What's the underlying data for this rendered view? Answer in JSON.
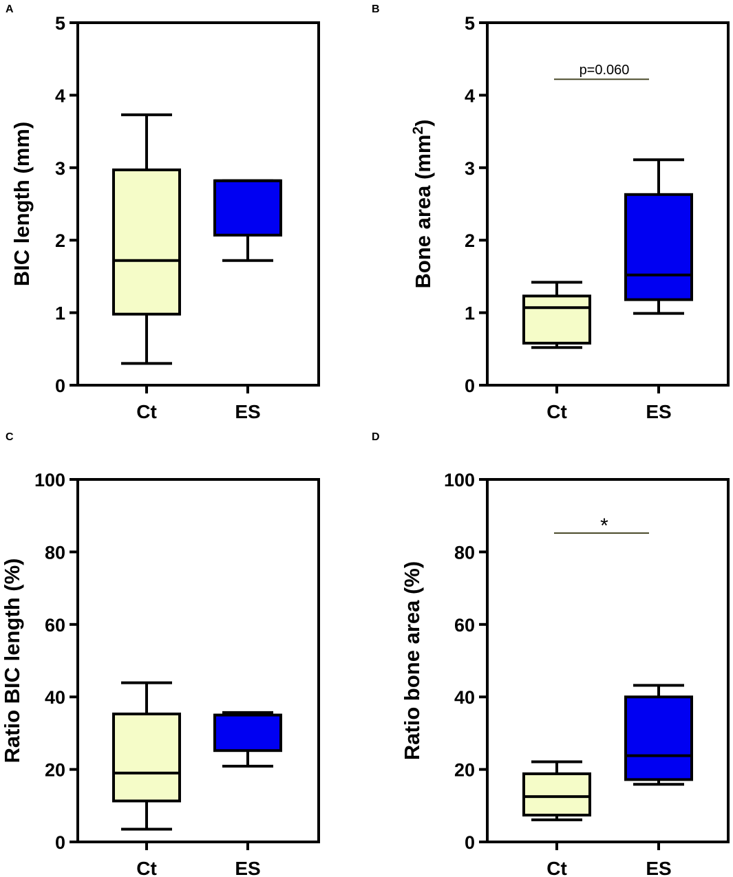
{
  "chart_data": [
    {
      "panel": "A",
      "type": "box",
      "categories": [
        "Ct",
        "ES"
      ],
      "ylabel": "BIC length (mm)",
      "ylabel_sup": "",
      "ylabel_tail": "",
      "ylim": [
        0,
        5
      ],
      "yticks": [
        "0",
        "1",
        "2",
        "3",
        "4",
        "5"
      ],
      "boxes": [
        {
          "name": "Ct",
          "min": 0.3,
          "q1": 0.98,
          "median": 1.72,
          "q3": 2.97,
          "max": 3.73,
          "color": "#f5fcc8"
        },
        {
          "name": "ES",
          "min": 1.72,
          "q1": 2.07,
          "median": 2.82,
          "q3": 2.82,
          "max": 2.82,
          "color": "#0000f2"
        }
      ],
      "annotation": null
    },
    {
      "panel": "B",
      "type": "box",
      "categories": [
        "Ct",
        "ES"
      ],
      "ylabel": "Bone area (mm",
      "ylabel_sup": "2",
      "ylabel_tail": ")",
      "ylim": [
        0,
        5
      ],
      "yticks": [
        "0",
        "1",
        "2",
        "3",
        "4",
        "5"
      ],
      "boxes": [
        {
          "name": "Ct",
          "min": 0.52,
          "q1": 0.58,
          "median": 1.07,
          "q3": 1.23,
          "max": 1.42,
          "color": "#f5fcc8"
        },
        {
          "name": "ES",
          "min": 0.99,
          "q1": 1.18,
          "median": 1.52,
          "q3": 2.63,
          "max": 3.11,
          "color": "#0000f2"
        }
      ],
      "annotation": {
        "text": "p=0.060",
        "y": 4.22,
        "style": "text"
      }
    },
    {
      "panel": "C",
      "type": "box",
      "categories": [
        "Ct",
        "ES"
      ],
      "ylabel": "Ratio BIC length (%)",
      "ylabel_sup": "",
      "ylabel_tail": "",
      "ylim": [
        0,
        100
      ],
      "yticks": [
        "0",
        "20",
        "40",
        "60",
        "80",
        "100"
      ],
      "boxes": [
        {
          "name": "Ct",
          "min": 3.5,
          "q1": 11.3,
          "median": 19.0,
          "q3": 35.3,
          "max": 43.9,
          "color": "#f5fcc8"
        },
        {
          "name": "ES",
          "min": 20.9,
          "q1": 25.2,
          "median": 35.0,
          "q3": 35.0,
          "max": 35.7,
          "color": "#0000f2"
        }
      ],
      "annotation": null
    },
    {
      "panel": "D",
      "type": "box",
      "categories": [
        "Ct",
        "ES"
      ],
      "ylabel": "Ratio bone area (%)",
      "ylabel_sup": "",
      "ylabel_tail": "",
      "ylim": [
        0,
        100
      ],
      "yticks": [
        "0",
        "20",
        "40",
        "60",
        "80",
        "100"
      ],
      "boxes": [
        {
          "name": "Ct",
          "min": 6.1,
          "q1": 7.4,
          "median": 12.5,
          "q3": 18.8,
          "max": 22.1,
          "color": "#f5fcc8"
        },
        {
          "name": "ES",
          "min": 15.9,
          "q1": 17.2,
          "median": 23.8,
          "q3": 40.0,
          "max": 43.2,
          "color": "#0000f2"
        }
      ],
      "annotation": {
        "text": "*",
        "y": 85.2,
        "style": "star"
      }
    }
  ]
}
